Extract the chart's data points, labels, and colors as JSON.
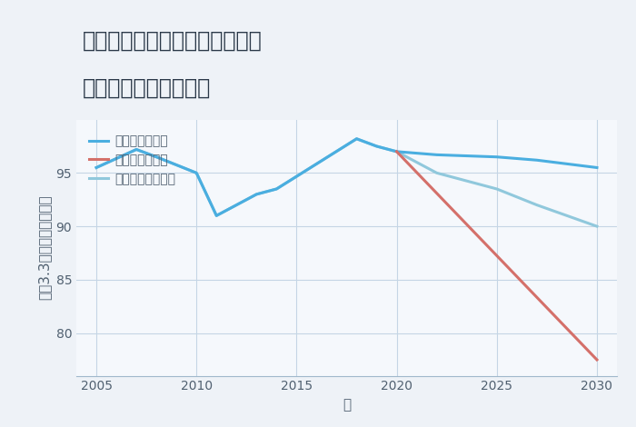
{
  "title_line1": "愛知県名古屋市守山区鳥神町の",
  "title_line2": "中古戸建ての価格推移",
  "xlabel": "年",
  "ylabel": "坪（3.3㎡）単価（万円）",
  "background_color": "#eef2f7",
  "plot_bg_color": "#f5f8fc",
  "good_scenario": {
    "label": "グッドシナリオ",
    "color": "#4aaee0",
    "x": [
      2005,
      2007,
      2008,
      2010,
      2011,
      2013,
      2014,
      2018,
      2019,
      2020,
      2022,
      2025,
      2027,
      2030
    ],
    "y": [
      95.5,
      97.2,
      96.5,
      95.0,
      91.0,
      93.0,
      93.5,
      98.2,
      97.5,
      97.0,
      96.7,
      96.5,
      96.2,
      95.5
    ]
  },
  "bad_scenario": {
    "label": "バッドシナリオ",
    "color": "#d4706a",
    "x": [
      2020,
      2030
    ],
    "y": [
      97.0,
      77.5
    ]
  },
  "normal_scenario": {
    "label": "ノーマルシナリオ",
    "color": "#90c8dc",
    "x": [
      2005,
      2007,
      2008,
      2010,
      2011,
      2013,
      2014,
      2018,
      2019,
      2020,
      2022,
      2025,
      2027,
      2030
    ],
    "y": [
      95.5,
      97.2,
      96.5,
      95.0,
      91.0,
      93.0,
      93.5,
      98.2,
      97.5,
      97.0,
      95.0,
      93.5,
      92.0,
      90.0
    ]
  },
  "ylim": [
    76,
    100
  ],
  "xlim": [
    2004,
    2031
  ],
  "yticks": [
    80,
    85,
    90,
    95
  ],
  "xticks": [
    2005,
    2010,
    2015,
    2020,
    2025,
    2030
  ],
  "title_fontsize": 17,
  "axis_fontsize": 11,
  "tick_fontsize": 10,
  "legend_fontsize": 10,
  "line_width": 2.2
}
